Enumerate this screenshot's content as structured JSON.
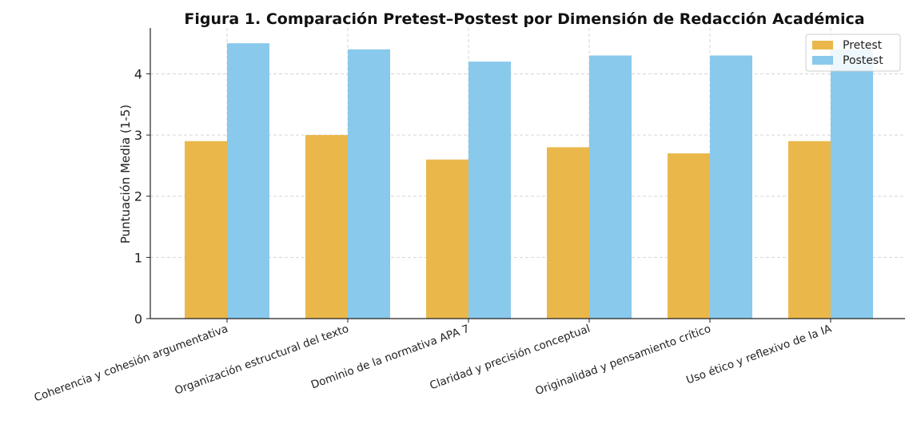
{
  "chart_data": {
    "type": "bar",
    "title": "Figura 1. Comparación Pretest–Postest por Dimensión de Redacción Académica",
    "xlabel": "",
    "ylabel": "Puntuación Media (1-5)",
    "ylim": [
      0,
      4.75
    ],
    "yticks": [
      "0",
      "1",
      "2",
      "3",
      "4"
    ],
    "grid": true,
    "legend_position": "top-right",
    "categories": [
      "Coherencia y cohesión argumentativa",
      "Organización estructural del texto",
      "Dominio de la normativa APA 7",
      "Claridad y precisión conceptual",
      "Originalidad y pensamiento crítico",
      "Uso ético y reflexivo de la IA"
    ],
    "series": [
      {
        "name": "Pretest",
        "color": "#EAB84A",
        "values": [
          2.9,
          3.0,
          2.6,
          2.8,
          2.7,
          2.9
        ]
      },
      {
        "name": "Postest",
        "color": "#89C9EC",
        "values": [
          4.5,
          4.4,
          4.2,
          4.3,
          4.3,
          4.4
        ]
      }
    ]
  }
}
